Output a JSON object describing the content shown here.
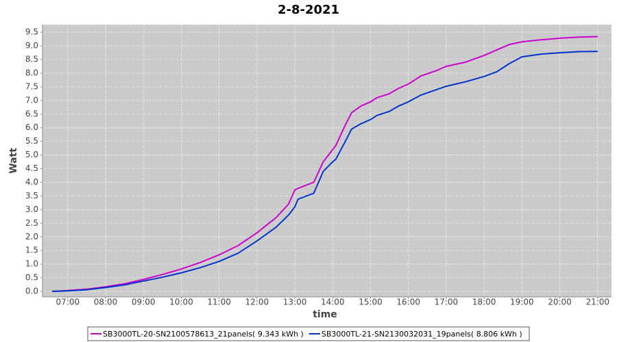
{
  "chart_data": {
    "type": "line",
    "title": "2-8-2021",
    "x_label": "time",
    "y_label": "Watt",
    "x": [
      "06:35",
      "07:00",
      "07:30",
      "08:00",
      "08:30",
      "09:00",
      "09:30",
      "10:00",
      "10:30",
      "11:00",
      "11:30",
      "12:00",
      "12:30",
      "12:50",
      "13:00",
      "13:05",
      "13:30",
      "13:45",
      "14:00",
      "14:05",
      "14:20",
      "14:30",
      "14:45",
      "15:00",
      "15:10",
      "15:30",
      "15:45",
      "16:00",
      "16:20",
      "16:45",
      "17:00",
      "17:30",
      "18:00",
      "18:20",
      "18:30",
      "18:40",
      "19:00",
      "19:30",
      "20:00",
      "20:30",
      "21:00"
    ],
    "series": [
      {
        "name": "SB3000TL-20-SN2100578613_21panels( 9.343 kWh )",
        "color": "#cc00cc",
        "values": [
          0,
          0.03,
          0.08,
          0.17,
          0.28,
          0.44,
          0.62,
          0.82,
          1.06,
          1.34,
          1.68,
          2.15,
          2.7,
          3.2,
          3.72,
          3.78,
          4.0,
          4.75,
          5.2,
          5.35,
          6.1,
          6.55,
          6.8,
          6.95,
          7.1,
          7.25,
          7.45,
          7.6,
          7.9,
          8.1,
          8.25,
          8.4,
          8.65,
          8.85,
          8.95,
          9.05,
          9.15,
          9.22,
          9.28,
          9.32,
          9.34
        ]
      },
      {
        "name": "SB3000TL-21-SN2130032031_19panels( 8.806 kWh )",
        "color": "#0033cc",
        "values": [
          0,
          0.02,
          0.06,
          0.14,
          0.24,
          0.38,
          0.52,
          0.68,
          0.87,
          1.1,
          1.4,
          1.85,
          2.35,
          2.8,
          3.1,
          3.38,
          3.6,
          4.4,
          4.75,
          4.85,
          5.5,
          5.95,
          6.15,
          6.3,
          6.45,
          6.6,
          6.8,
          6.95,
          7.2,
          7.4,
          7.52,
          7.68,
          7.88,
          8.05,
          8.2,
          8.35,
          8.6,
          8.7,
          8.75,
          8.79,
          8.8
        ]
      }
    ],
    "xlim": [
      "06:20",
      "21:22"
    ],
    "xticks": [
      "07:00",
      "08:00",
      "09:00",
      "10:00",
      "11:00",
      "12:00",
      "13:00",
      "14:00",
      "15:00",
      "16:00",
      "17:00",
      "18:00",
      "19:00",
      "20:00",
      "21:00"
    ],
    "ylim": [
      -0.2,
      9.78
    ],
    "yticks": [
      {
        "value": 0,
        "label": "0.0"
      },
      0.5,
      {
        "value": 1,
        "label": "1.0"
      },
      1.5,
      {
        "value": 2,
        "label": "2.0"
      },
      2.5,
      {
        "value": 3,
        "label": "3.0"
      },
      3.5,
      {
        "value": 4,
        "label": "4.0"
      },
      4.5,
      {
        "value": 5,
        "label": "5.0"
      },
      5.5,
      {
        "value": 6,
        "label": "6.0"
      },
      6.5,
      {
        "value": 7,
        "label": "7.0"
      },
      7.5,
      {
        "value": 8,
        "label": "8.0"
      },
      8.5,
      {
        "value": 9,
        "label": "9.0"
      },
      9.5
    ],
    "grid": true
  }
}
